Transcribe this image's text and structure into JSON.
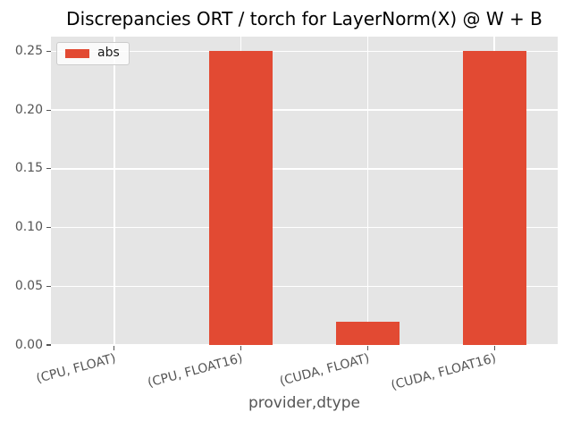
{
  "chart_data": {
    "type": "bar",
    "title": "Discrepancies ORT / torch for LayerNorm(X) @ W + B",
    "xlabel": "provider,dtype",
    "ylabel": "",
    "categories": [
      "(CPU, FLOAT)",
      "(CPU, FLOAT16)",
      "(CUDA, FLOAT)",
      "(CUDA, FLOAT16)"
    ],
    "series": [
      {
        "name": "abs",
        "values": [
          0.0,
          0.25,
          0.02,
          0.25
        ]
      }
    ],
    "yticks": [
      0.0,
      0.05,
      0.1,
      0.15,
      0.2,
      0.25
    ],
    "ytick_labels": [
      "0.00",
      "0.05",
      "0.10",
      "0.15",
      "0.20",
      "0.25"
    ],
    "ylim": [
      0,
      0.2625
    ],
    "grid": true,
    "legend_position": "upper left",
    "bar_width_fraction": 0.5,
    "xtick_rotation_deg": 15,
    "colors": {
      "bar": "#E24A33",
      "plot_background": "#E5E5E5",
      "figure_background": "#FFFFFF",
      "gridline": "#FFFFFF",
      "tick_color": "#555555",
      "tick_label_text": "#555555",
      "title_text": "#000000",
      "legend_border": "#CCCCCC",
      "legend_background": "rgba(255,255,255,0.8)"
    }
  }
}
